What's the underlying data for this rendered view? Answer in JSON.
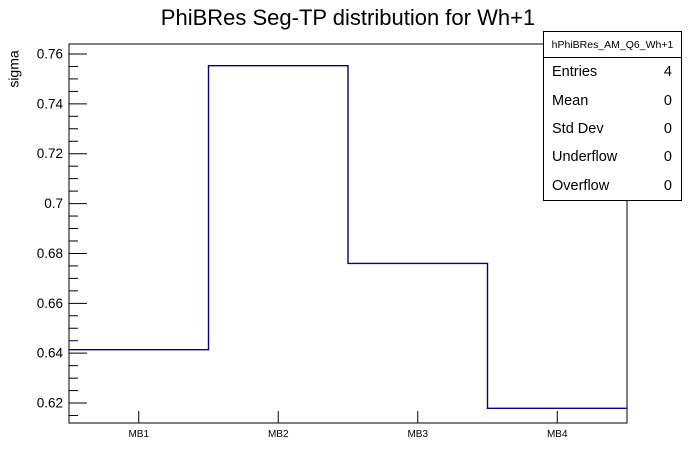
{
  "chart_data": {
    "type": "bar",
    "style": "step-outline-histogram",
    "title": "PhiBRes Seg-TP distribution for Wh+1",
    "xlabel": "",
    "ylabel": "sigma",
    "categories": [
      "MB1",
      "MB2",
      "MB3",
      "MB4"
    ],
    "values": [
      0.6414,
      0.7553,
      0.676,
      0.6179
    ],
    "ylim": [
      0.612,
      0.764
    ],
    "y_ticks": [
      {
        "v": 0.76,
        "label": "0.76"
      },
      {
        "v": 0.74,
        "label": "0.74"
      },
      {
        "v": 0.72,
        "label": "0.72"
      },
      {
        "v": 0.7,
        "label": "0.7"
      },
      {
        "v": 0.68,
        "label": "0.68"
      },
      {
        "v": 0.66,
        "label": "0.66"
      },
      {
        "v": 0.64,
        "label": "0.64"
      },
      {
        "v": 0.62,
        "label": "0.62"
      }
    ],
    "y_minor_step": 0.005,
    "grid": false,
    "legend_position": "top-right-stats-box",
    "line_color": "#00008b",
    "frame_color": "#000000",
    "background": "#ffffff"
  },
  "stats": {
    "header": "hPhiBRes_AM_Q6_Wh+1",
    "rows": [
      {
        "label": "Entries",
        "value": "4"
      },
      {
        "label": "Mean",
        "value": "0"
      },
      {
        "label": "Std Dev",
        "value": "0"
      },
      {
        "label": "Underflow",
        "value": "0"
      },
      {
        "label": "Overflow",
        "value": "0"
      }
    ]
  }
}
